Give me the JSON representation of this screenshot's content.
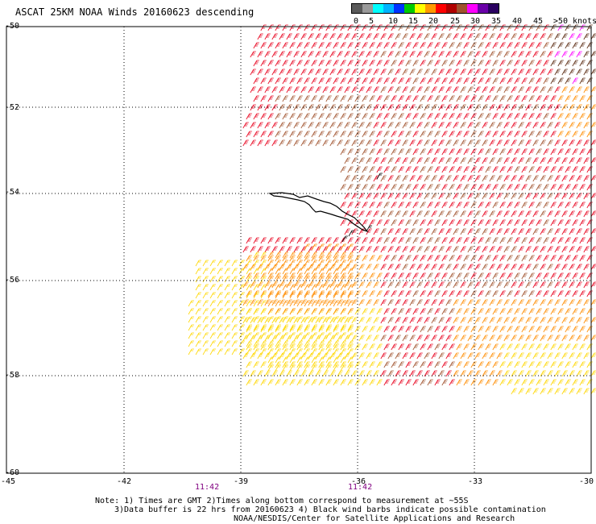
{
  "title": "ASCAT 25KM NOAA Winds 20160623 descending",
  "legend": {
    "labels": [
      "0",
      "5",
      "10",
      "15",
      "20",
      "25",
      "30",
      "35",
      "40",
      "45",
      ">50 knots"
    ],
    "colors": [
      "#5a5a5a",
      "#9a9a9a",
      "#00ffff",
      "#00b4ff",
      "#0032ff",
      "#00cc00",
      "#ffff00",
      "#ff9900",
      "#ff0000",
      "#b00000",
      "#a0522d",
      "#ff00ff",
      "#6a00a8",
      "#2a0060"
    ]
  },
  "axes": {
    "lat_labels": [
      "-50",
      "-52",
      "-54",
      "-56",
      "-58",
      "-60"
    ],
    "lon_labels": [
      "-45",
      "-42",
      "-39",
      "-36",
      "-33",
      "-30"
    ]
  },
  "time_labels": [
    "11:42",
    "11:42"
  ],
  "notes": {
    "line1": "Note: 1) Times are GMT 2)Times along bottom correspond to measurement at ~55S",
    "line2": "3)Data buffer is 22 hrs from 20160623 4) Black wind barbs indicate possible contamination",
    "line3": "NOAA/NESDIS/Center for Satellite Applications and Research"
  },
  "wind_colors": {
    "yellow": "#ffd700",
    "orange": "#ff8c00",
    "red": "#e8001c",
    "brown": "#a0522d",
    "dark_brown": "#5a2a10",
    "magenta": "#ff00ff",
    "black": "#000000"
  }
}
